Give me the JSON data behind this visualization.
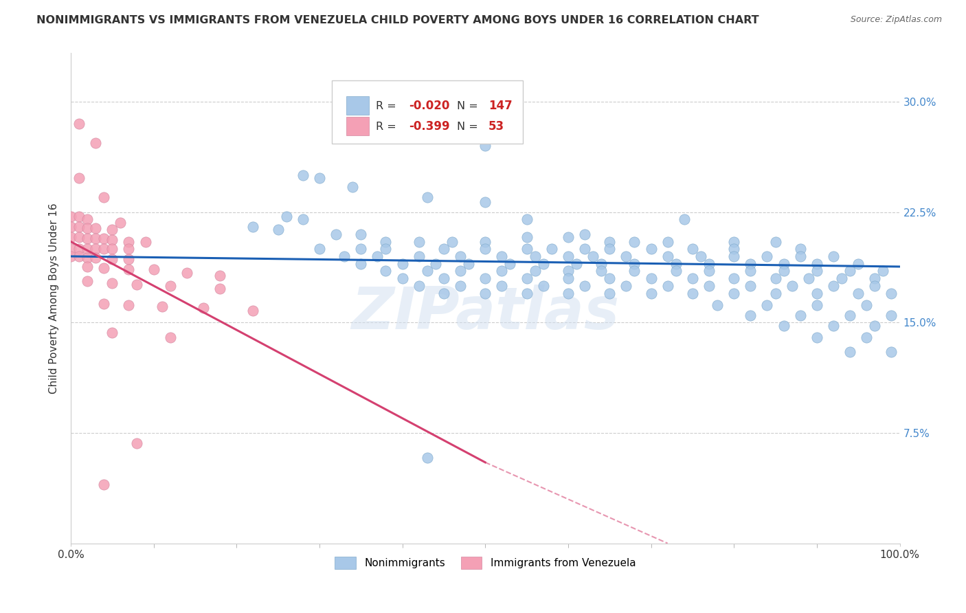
{
  "title": "NONIMMIGRANTS VS IMMIGRANTS FROM VENEZUELA CHILD POVERTY AMONG BOYS UNDER 16 CORRELATION CHART",
  "source": "Source: ZipAtlas.com",
  "ylabel": "Child Poverty Among Boys Under 16",
  "xlim": [
    0.0,
    1.0
  ],
  "ylim": [
    0.0,
    0.333
  ],
  "xtick_positions": [
    0.0,
    1.0
  ],
  "xtick_labels": [
    "0.0%",
    "100.0%"
  ],
  "ytick_values": [
    0.075,
    0.15,
    0.225,
    0.3
  ],
  "ytick_labels": [
    "7.5%",
    "15.0%",
    "22.5%",
    "30.0%"
  ],
  "blue_color": "#a8c8e8",
  "blue_line_color": "#1a5fb4",
  "pink_color": "#f4a0b5",
  "pink_line_color": "#d44070",
  "blue_line": [
    [
      0.0,
      0.195
    ],
    [
      1.0,
      0.188
    ]
  ],
  "pink_line_solid": [
    [
      0.0,
      0.205
    ],
    [
      0.5,
      0.055
    ]
  ],
  "pink_line_dash": [
    [
      0.5,
      0.055
    ],
    [
      0.72,
      0.0
    ]
  ],
  "blue_scatter": [
    [
      0.38,
      0.298
    ],
    [
      0.5,
      0.27
    ],
    [
      0.28,
      0.25
    ],
    [
      0.3,
      0.248
    ],
    [
      0.34,
      0.242
    ],
    [
      0.43,
      0.235
    ],
    [
      0.5,
      0.232
    ],
    [
      0.26,
      0.222
    ],
    [
      0.28,
      0.22
    ],
    [
      0.55,
      0.22
    ],
    [
      0.74,
      0.22
    ],
    [
      0.22,
      0.215
    ],
    [
      0.25,
      0.213
    ],
    [
      0.32,
      0.21
    ],
    [
      0.35,
      0.21
    ],
    [
      0.55,
      0.208
    ],
    [
      0.6,
      0.208
    ],
    [
      0.62,
      0.21
    ],
    [
      0.38,
      0.205
    ],
    [
      0.42,
      0.205
    ],
    [
      0.46,
      0.205
    ],
    [
      0.5,
      0.205
    ],
    [
      0.65,
      0.205
    ],
    [
      0.68,
      0.205
    ],
    [
      0.72,
      0.205
    ],
    [
      0.8,
      0.205
    ],
    [
      0.85,
      0.205
    ],
    [
      0.3,
      0.2
    ],
    [
      0.35,
      0.2
    ],
    [
      0.38,
      0.2
    ],
    [
      0.45,
      0.2
    ],
    [
      0.5,
      0.2
    ],
    [
      0.55,
      0.2
    ],
    [
      0.58,
      0.2
    ],
    [
      0.62,
      0.2
    ],
    [
      0.65,
      0.2
    ],
    [
      0.7,
      0.2
    ],
    [
      0.75,
      0.2
    ],
    [
      0.8,
      0.2
    ],
    [
      0.88,
      0.2
    ],
    [
      0.33,
      0.195
    ],
    [
      0.37,
      0.195
    ],
    [
      0.42,
      0.195
    ],
    [
      0.47,
      0.195
    ],
    [
      0.52,
      0.195
    ],
    [
      0.56,
      0.195
    ],
    [
      0.6,
      0.195
    ],
    [
      0.63,
      0.195
    ],
    [
      0.67,
      0.195
    ],
    [
      0.72,
      0.195
    ],
    [
      0.76,
      0.195
    ],
    [
      0.8,
      0.195
    ],
    [
      0.84,
      0.195
    ],
    [
      0.88,
      0.195
    ],
    [
      0.92,
      0.195
    ],
    [
      0.35,
      0.19
    ],
    [
      0.4,
      0.19
    ],
    [
      0.44,
      0.19
    ],
    [
      0.48,
      0.19
    ],
    [
      0.53,
      0.19
    ],
    [
      0.57,
      0.19
    ],
    [
      0.61,
      0.19
    ],
    [
      0.64,
      0.19
    ],
    [
      0.68,
      0.19
    ],
    [
      0.73,
      0.19
    ],
    [
      0.77,
      0.19
    ],
    [
      0.82,
      0.19
    ],
    [
      0.86,
      0.19
    ],
    [
      0.9,
      0.19
    ],
    [
      0.95,
      0.19
    ],
    [
      0.38,
      0.185
    ],
    [
      0.43,
      0.185
    ],
    [
      0.47,
      0.185
    ],
    [
      0.52,
      0.185
    ],
    [
      0.56,
      0.185
    ],
    [
      0.6,
      0.185
    ],
    [
      0.64,
      0.185
    ],
    [
      0.68,
      0.185
    ],
    [
      0.73,
      0.185
    ],
    [
      0.77,
      0.185
    ],
    [
      0.82,
      0.185
    ],
    [
      0.86,
      0.185
    ],
    [
      0.9,
      0.185
    ],
    [
      0.94,
      0.185
    ],
    [
      0.98,
      0.185
    ],
    [
      0.4,
      0.18
    ],
    [
      0.45,
      0.18
    ],
    [
      0.5,
      0.18
    ],
    [
      0.55,
      0.18
    ],
    [
      0.6,
      0.18
    ],
    [
      0.65,
      0.18
    ],
    [
      0.7,
      0.18
    ],
    [
      0.75,
      0.18
    ],
    [
      0.8,
      0.18
    ],
    [
      0.85,
      0.18
    ],
    [
      0.89,
      0.18
    ],
    [
      0.93,
      0.18
    ],
    [
      0.97,
      0.18
    ],
    [
      0.42,
      0.175
    ],
    [
      0.47,
      0.175
    ],
    [
      0.52,
      0.175
    ],
    [
      0.57,
      0.175
    ],
    [
      0.62,
      0.175
    ],
    [
      0.67,
      0.175
    ],
    [
      0.72,
      0.175
    ],
    [
      0.77,
      0.175
    ],
    [
      0.82,
      0.175
    ],
    [
      0.87,
      0.175
    ],
    [
      0.92,
      0.175
    ],
    [
      0.97,
      0.175
    ],
    [
      0.45,
      0.17
    ],
    [
      0.5,
      0.17
    ],
    [
      0.55,
      0.17
    ],
    [
      0.6,
      0.17
    ],
    [
      0.65,
      0.17
    ],
    [
      0.7,
      0.17
    ],
    [
      0.75,
      0.17
    ],
    [
      0.8,
      0.17
    ],
    [
      0.85,
      0.17
    ],
    [
      0.9,
      0.17
    ],
    [
      0.95,
      0.17
    ],
    [
      0.99,
      0.17
    ],
    [
      0.78,
      0.162
    ],
    [
      0.84,
      0.162
    ],
    [
      0.9,
      0.162
    ],
    [
      0.96,
      0.162
    ],
    [
      0.82,
      0.155
    ],
    [
      0.88,
      0.155
    ],
    [
      0.94,
      0.155
    ],
    [
      0.99,
      0.155
    ],
    [
      0.86,
      0.148
    ],
    [
      0.92,
      0.148
    ],
    [
      0.97,
      0.148
    ],
    [
      0.9,
      0.14
    ],
    [
      0.96,
      0.14
    ],
    [
      0.94,
      0.13
    ],
    [
      0.99,
      0.13
    ],
    [
      0.43,
      0.058
    ]
  ],
  "pink_scatter": [
    [
      0.01,
      0.285
    ],
    [
      0.03,
      0.272
    ],
    [
      0.01,
      0.248
    ],
    [
      0.04,
      0.235
    ],
    [
      0.0,
      0.222
    ],
    [
      0.01,
      0.222
    ],
    [
      0.02,
      0.22
    ],
    [
      0.06,
      0.218
    ],
    [
      0.0,
      0.215
    ],
    [
      0.01,
      0.215
    ],
    [
      0.02,
      0.214
    ],
    [
      0.03,
      0.214
    ],
    [
      0.05,
      0.213
    ],
    [
      0.0,
      0.208
    ],
    [
      0.01,
      0.208
    ],
    [
      0.02,
      0.207
    ],
    [
      0.03,
      0.207
    ],
    [
      0.04,
      0.207
    ],
    [
      0.05,
      0.206
    ],
    [
      0.07,
      0.205
    ],
    [
      0.09,
      0.205
    ],
    [
      0.0,
      0.2
    ],
    [
      0.01,
      0.2
    ],
    [
      0.02,
      0.2
    ],
    [
      0.03,
      0.2
    ],
    [
      0.04,
      0.2
    ],
    [
      0.05,
      0.2
    ],
    [
      0.07,
      0.2
    ],
    [
      0.0,
      0.195
    ],
    [
      0.01,
      0.195
    ],
    [
      0.02,
      0.194
    ],
    [
      0.03,
      0.194
    ],
    [
      0.05,
      0.193
    ],
    [
      0.07,
      0.193
    ],
    [
      0.02,
      0.188
    ],
    [
      0.04,
      0.187
    ],
    [
      0.07,
      0.186
    ],
    [
      0.1,
      0.186
    ],
    [
      0.14,
      0.184
    ],
    [
      0.18,
      0.182
    ],
    [
      0.02,
      0.178
    ],
    [
      0.05,
      0.177
    ],
    [
      0.08,
      0.176
    ],
    [
      0.12,
      0.175
    ],
    [
      0.18,
      0.173
    ],
    [
      0.04,
      0.163
    ],
    [
      0.07,
      0.162
    ],
    [
      0.11,
      0.161
    ],
    [
      0.16,
      0.16
    ],
    [
      0.22,
      0.158
    ],
    [
      0.05,
      0.143
    ],
    [
      0.12,
      0.14
    ],
    [
      0.08,
      0.068
    ],
    [
      0.04,
      0.04
    ]
  ]
}
